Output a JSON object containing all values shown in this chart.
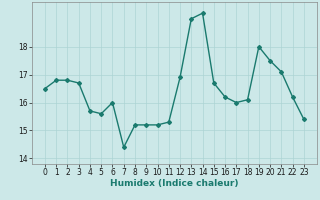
{
  "x": [
    0,
    1,
    2,
    3,
    4,
    5,
    6,
    7,
    8,
    9,
    10,
    11,
    12,
    13,
    14,
    15,
    16,
    17,
    18,
    19,
    20,
    21,
    22,
    23
  ],
  "y": [
    16.5,
    16.8,
    16.8,
    16.7,
    15.7,
    15.6,
    16.0,
    14.4,
    15.2,
    15.2,
    15.2,
    15.3,
    16.9,
    19.0,
    19.2,
    16.7,
    16.2,
    16.0,
    16.1,
    18.0,
    17.5,
    17.1,
    16.2,
    15.4
  ],
  "line_color": "#1a7a6e",
  "marker": "D",
  "marker_size": 2,
  "linewidth": 1.0,
  "bg_color": "#cce8e8",
  "grid_color": "#add4d4",
  "xlabel": "Humidex (Indice chaleur)",
  "ylim": [
    13.8,
    19.6
  ],
  "yticks": [
    14,
    15,
    16,
    17,
    18
  ],
  "xticks": [
    0,
    1,
    2,
    3,
    4,
    5,
    6,
    7,
    8,
    9,
    10,
    11,
    12,
    13,
    14,
    15,
    16,
    17,
    18,
    19,
    20,
    21,
    22,
    23
  ],
  "label_fontsize": 6.5,
  "tick_fontsize": 5.5
}
